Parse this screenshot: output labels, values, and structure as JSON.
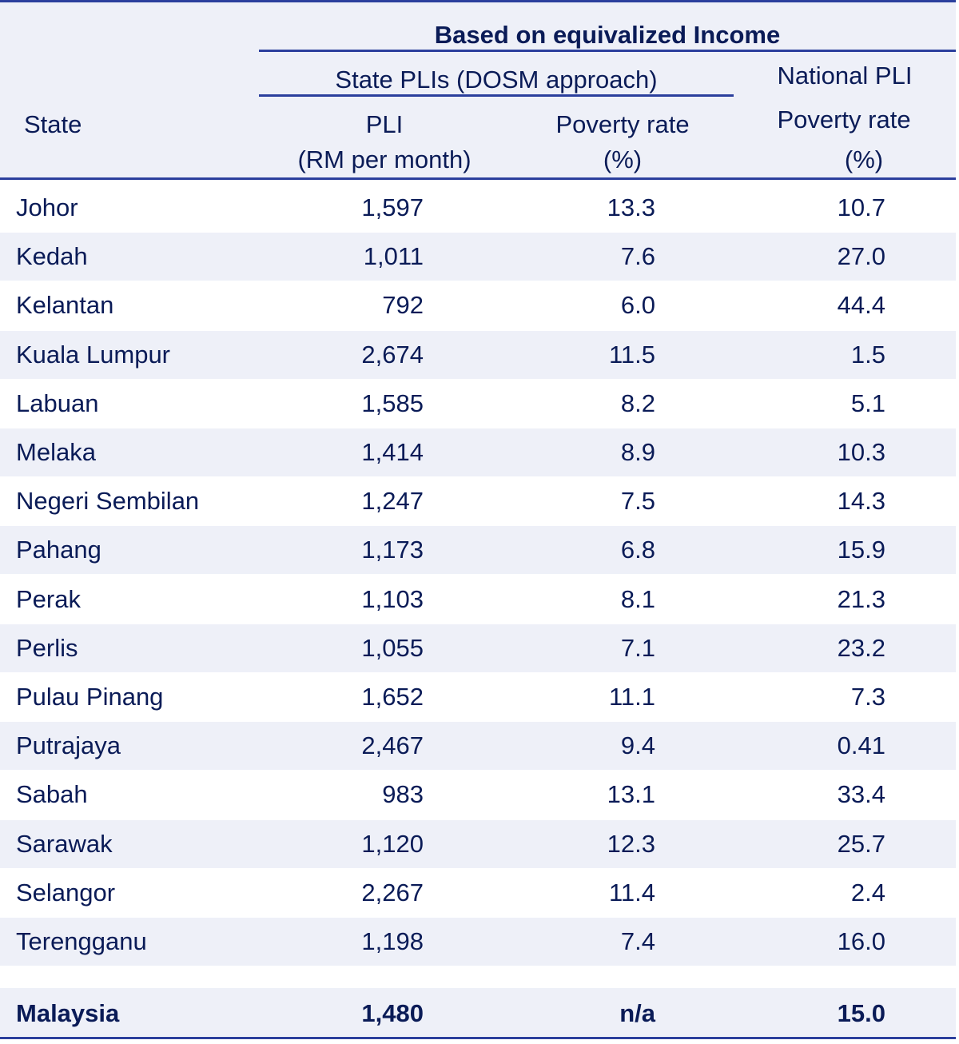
{
  "header": {
    "group_title": "Based on equivalized Income",
    "state_plis_title": "State PLIs (DOSM approach)",
    "national_pli_title": "National PLI",
    "col_state": "State",
    "col_pli_line1": "PLI",
    "col_pli_line2": "(RM per month)",
    "col_pr_line1": "Poverty rate",
    "col_pr_line2": "(%)",
    "col_npr_line1": "Poverty rate",
    "col_npr_line2": "(%)"
  },
  "rows": [
    {
      "state": "Johor",
      "pli": "1,597",
      "poverty_rate": "13.3",
      "national_poverty_rate": "10.7"
    },
    {
      "state": "Kedah",
      "pli": "1,011",
      "poverty_rate": "7.6",
      "national_poverty_rate": "27.0"
    },
    {
      "state": "Kelantan",
      "pli": "792",
      "poverty_rate": "6.0",
      "national_poverty_rate": "44.4"
    },
    {
      "state": "Kuala Lumpur",
      "pli": "2,674",
      "poverty_rate": "11.5",
      "national_poverty_rate": "1.5"
    },
    {
      "state": "Labuan",
      "pli": "1,585",
      "poverty_rate": "8.2",
      "national_poverty_rate": "5.1"
    },
    {
      "state": "Melaka",
      "pli": "1,414",
      "poverty_rate": "8.9",
      "national_poverty_rate": "10.3"
    },
    {
      "state": "Negeri Sembilan",
      "pli": "1,247",
      "poverty_rate": "7.5",
      "national_poverty_rate": "14.3"
    },
    {
      "state": "Pahang",
      "pli": "1,173",
      "poverty_rate": "6.8",
      "national_poverty_rate": "15.9"
    },
    {
      "state": "Perak",
      "pli": "1,103",
      "poverty_rate": "8.1",
      "national_poverty_rate": "21.3"
    },
    {
      "state": "Perlis",
      "pli": "1,055",
      "poverty_rate": "7.1",
      "national_poverty_rate": "23.2"
    },
    {
      "state": "Pulau Pinang",
      "pli": "1,652",
      "poverty_rate": "11.1",
      "national_poverty_rate": "7.3"
    },
    {
      "state": "Putrajaya",
      "pli": "2,467",
      "poverty_rate": "9.4",
      "national_poverty_rate": "0.41"
    },
    {
      "state": "Sabah",
      "pli": "983",
      "poverty_rate": "13.1",
      "national_poverty_rate": "33.4"
    },
    {
      "state": "Sarawak",
      "pli": "1,120",
      "poverty_rate": "12.3",
      "national_poverty_rate": "25.7"
    },
    {
      "state": "Selangor",
      "pli": "2,267",
      "poverty_rate": "11.4",
      "national_poverty_rate": "2.4"
    },
    {
      "state": "Terengganu",
      "pli": "1,198",
      "poverty_rate": "7.4",
      "national_poverty_rate": "16.0"
    }
  ],
  "total": {
    "state": "Malaysia",
    "pli": "1,480",
    "poverty_rate": "n/a",
    "national_poverty_rate": "15.0"
  },
  "colors": {
    "text": "#0a1b57",
    "rule": "#2b3f9d",
    "band": "#eef0f8"
  }
}
